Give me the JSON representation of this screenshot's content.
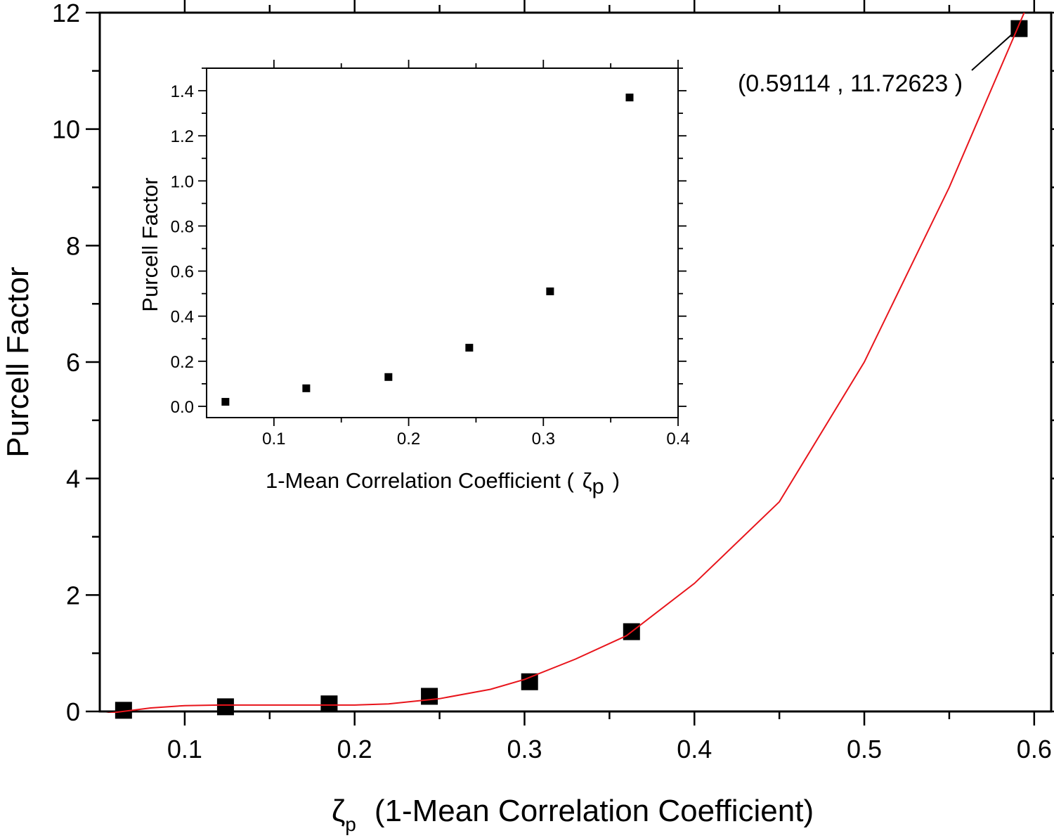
{
  "chart_data": [
    {
      "id": "main",
      "type": "scatter",
      "xlabel": "(1-Mean Correlation Coefficient)",
      "xlabel_symbol": "ζ",
      "xlabel_symbol_sub": "p",
      "ylabel": "Purcell Factor",
      "xlim": [
        0.05,
        0.61
      ],
      "ylim": [
        0,
        12
      ],
      "xticks": [
        0.1,
        0.2,
        0.3,
        0.4,
        0.5,
        0.6
      ],
      "xtick_labels": [
        "0.1",
        "0.2",
        "0.3",
        "0.4",
        "0.5",
        "0.6"
      ],
      "yticks": [
        0,
        2,
        4,
        6,
        8,
        10,
        12
      ],
      "ytick_labels": [
        "0",
        "2",
        "4",
        "6",
        "8",
        "10",
        "12"
      ],
      "grid": false,
      "series": [
        {
          "kind": "points",
          "marker": "square",
          "color": "#000000",
          "x": [
            0.064,
            0.124,
            0.185,
            0.244,
            0.303,
            0.363,
            0.59114
          ],
          "y": [
            0.02,
            0.08,
            0.13,
            0.26,
            0.51,
            1.37,
            11.72623
          ]
        },
        {
          "kind": "fit-curve",
          "color": "#e8141b",
          "x": [
            0.05,
            0.08,
            0.1,
            0.12,
            0.15,
            0.18,
            0.2,
            0.22,
            0.25,
            0.28,
            0.3,
            0.33,
            0.36,
            0.4,
            0.45,
            0.5,
            0.55,
            0.6
          ],
          "y": [
            -0.05,
            0.06,
            0.1,
            0.11,
            0.11,
            0.11,
            0.11,
            0.13,
            0.22,
            0.38,
            0.55,
            0.9,
            1.3,
            2.2,
            3.6,
            6.0,
            9.0,
            12.4
          ]
        }
      ],
      "annotation": {
        "text": "(0.59114 , 11.72623 )",
        "x": 0.59114,
        "y": 11.72623
      }
    },
    {
      "id": "inset",
      "type": "scatter",
      "xlabel": "1-Mean Correlation Coefficient (",
      "xlabel_symbol": "ζ",
      "xlabel_symbol_sub": "p",
      "xlabel_close": ")",
      "ylabel": "Purcell Factor",
      "xlim": [
        0.05,
        0.4
      ],
      "ylim": [
        -0.05,
        1.5
      ],
      "xticks": [
        0.1,
        0.2,
        0.3,
        0.4
      ],
      "xtick_labels": [
        "0.1",
        "0.2",
        "0.3",
        "0.4"
      ],
      "yticks": [
        0.0,
        0.2,
        0.4,
        0.6,
        0.8,
        1.0,
        1.2,
        1.4
      ],
      "ytick_labels": [
        "0.0",
        "0.2",
        "0.4",
        "0.6",
        "0.8",
        "1.0",
        "1.2",
        "1.4"
      ],
      "grid": false,
      "series": [
        {
          "kind": "points",
          "marker": "square",
          "color": "#000000",
          "x": [
            0.064,
            0.124,
            0.185,
            0.245,
            0.305,
            0.364
          ],
          "y": [
            0.02,
            0.08,
            0.13,
            0.26,
            0.51,
            1.37
          ]
        }
      ]
    }
  ]
}
